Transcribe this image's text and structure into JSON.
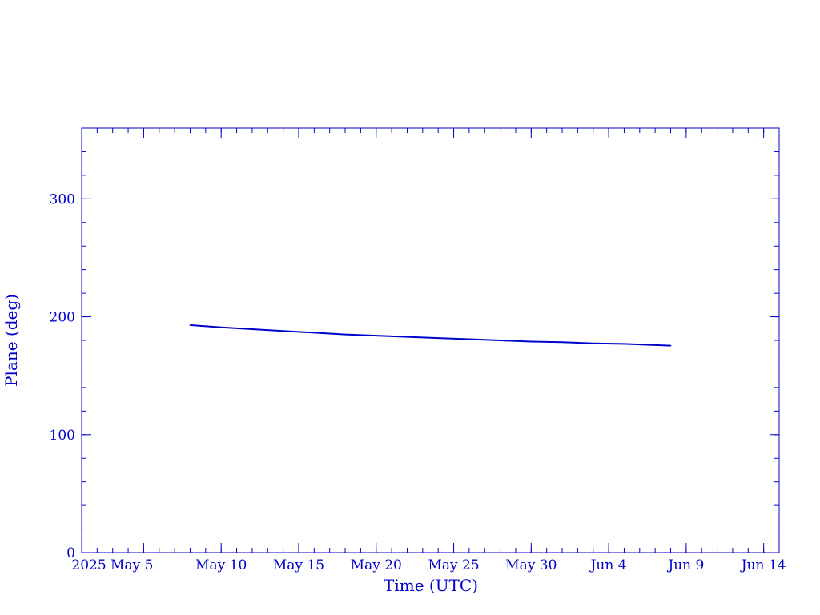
{
  "chart_data": {
    "type": "line",
    "title": "",
    "xlabel": "Time (UTC)",
    "ylabel": "Plane (deg)",
    "ylim": [
      0,
      360
    ],
    "xlim": [
      "2025-05-01",
      "2025-06-15"
    ],
    "x_ticks": [
      {
        "date": "2025-05-05",
        "label": "2025 May  5"
      },
      {
        "date": "2025-05-10",
        "label": "May 10"
      },
      {
        "date": "2025-05-15",
        "label": "May 15"
      },
      {
        "date": "2025-05-20",
        "label": "May 20"
      },
      {
        "date": "2025-05-25",
        "label": "May 25"
      },
      {
        "date": "2025-05-30",
        "label": "May 30"
      },
      {
        "date": "2025-06-04",
        "label": "Jun  4"
      },
      {
        "date": "2025-06-09",
        "label": "Jun  9"
      },
      {
        "date": "2025-06-14",
        "label": "Jun 14"
      }
    ],
    "y_ticks": [
      {
        "value": 0,
        "label": "0"
      },
      {
        "value": 100,
        "label": "100"
      },
      {
        "value": 200,
        "label": "200"
      },
      {
        "value": 300,
        "label": "300"
      }
    ],
    "series": [
      {
        "color": "#0000cc",
        "points": [
          {
            "x": "2025-05-08",
            "y": 193
          },
          {
            "x": "2025-05-10",
            "y": 191
          },
          {
            "x": "2025-05-12",
            "y": 189.5
          },
          {
            "x": "2025-05-14",
            "y": 188
          },
          {
            "x": "2025-05-16",
            "y": 186.5
          },
          {
            "x": "2025-05-18",
            "y": 185
          },
          {
            "x": "2025-05-20",
            "y": 184
          },
          {
            "x": "2025-05-22",
            "y": 183
          },
          {
            "x": "2025-05-24",
            "y": 182
          },
          {
            "x": "2025-05-26",
            "y": 181
          },
          {
            "x": "2025-05-28",
            "y": 180
          },
          {
            "x": "2025-05-30",
            "y": 179
          },
          {
            "x": "2025-06-01",
            "y": 178.5
          },
          {
            "x": "2025-06-03",
            "y": 177.5
          },
          {
            "x": "2025-06-05",
            "y": 177
          },
          {
            "x": "2025-06-07",
            "y": 176
          },
          {
            "x": "2025-06-08",
            "y": 175.5
          }
        ]
      }
    ],
    "grid": false,
    "legend": "none",
    "axis_color": "#0000cc"
  }
}
